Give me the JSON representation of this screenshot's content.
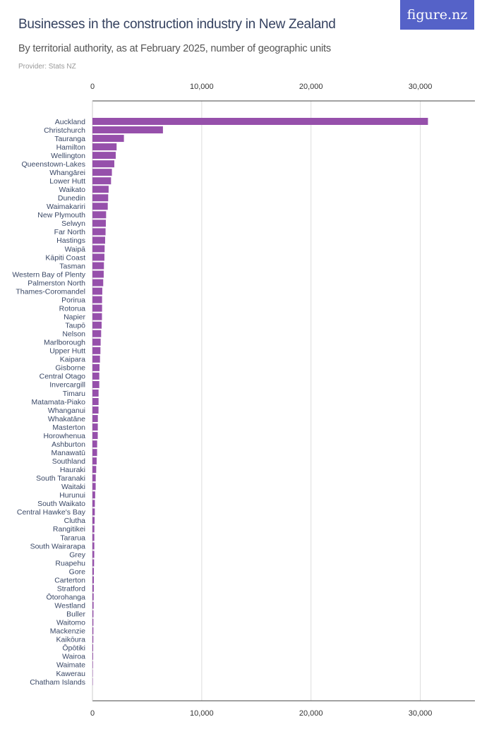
{
  "header": {
    "title": "Businesses in the construction industry in New Zealand",
    "subtitle": "By territorial authority, as at February 2025, number of geographic units",
    "provider": "Provider: Stats NZ",
    "logo": "figure.nz"
  },
  "colors": {
    "bar": "#9650ab",
    "title": "#34415f",
    "logo_bg": "#5562c8",
    "grid": "#dddddd"
  },
  "chart_data": {
    "type": "bar",
    "orientation": "horizontal",
    "title": "Businesses in the construction industry in New Zealand",
    "xlim": [
      0,
      35000
    ],
    "xticks": [
      0,
      10000,
      20000,
      30000
    ],
    "xtick_labels": [
      "0",
      "10,000",
      "20,000",
      "30,000"
    ],
    "grid": true,
    "categories": [
      "Auckland",
      "Christchurch",
      "Tauranga",
      "Hamilton",
      "Wellington",
      "Queenstown-Lakes",
      "Whangārei",
      "Lower Hutt",
      "Waikato",
      "Dunedin",
      "Waimakariri",
      "New Plymouth",
      "Selwyn",
      "Far North",
      "Hastings",
      "Waipā",
      "Kāpiti Coast",
      "Tasman",
      "Western Bay of Plenty",
      "Palmerston North",
      "Thames-Coromandel",
      "Porirua",
      "Rotorua",
      "Napier",
      "Taupō",
      "Nelson",
      "Marlborough",
      "Upper Hutt",
      "Kaipara",
      "Gisborne",
      "Central Otago",
      "Invercargill",
      "Timaru",
      "Matamata-Piako",
      "Whanganui",
      "Whakatāne",
      "Masterton",
      "Horowhenua",
      "Ashburton",
      "Manawatū",
      "Southland",
      "Hauraki",
      "South Taranaki",
      "Waitaki",
      "Hurunui",
      "South Waikato",
      "Central Hawke's Bay",
      "Clutha",
      "Rangitikei",
      "Tararua",
      "South Wairarapa",
      "Grey",
      "Ruapehu",
      "Gore",
      "Carterton",
      "Stratford",
      "Ōtorohanga",
      "Westland",
      "Buller",
      "Waitomo",
      "Mackenzie",
      "Kaikōura",
      "Ōpōtiki",
      "Wairoa",
      "Waimate",
      "Kawerau",
      "Chatham Islands"
    ],
    "values": [
      30700,
      6450,
      2880,
      2210,
      2130,
      2000,
      1780,
      1700,
      1480,
      1440,
      1400,
      1250,
      1225,
      1200,
      1160,
      1115,
      1095,
      1050,
      1030,
      985,
      900,
      880,
      880,
      870,
      840,
      795,
      750,
      730,
      690,
      645,
      625,
      625,
      560,
      560,
      555,
      495,
      490,
      485,
      430,
      425,
      385,
      345,
      300,
      295,
      250,
      220,
      215,
      195,
      175,
      170,
      170,
      165,
      150,
      130,
      130,
      125,
      110,
      105,
      90,
      85,
      85,
      80,
      65,
      60,
      45,
      25,
      10
    ]
  }
}
